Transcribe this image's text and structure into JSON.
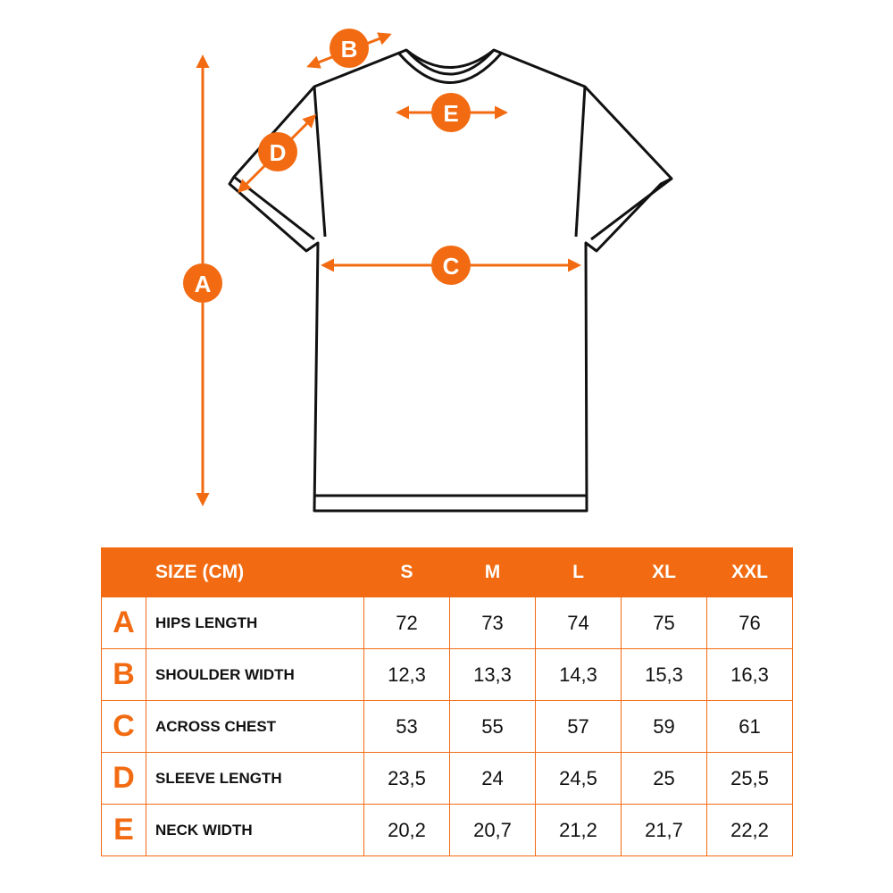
{
  "diagram": {
    "markers": [
      "A",
      "B",
      "C",
      "D",
      "E"
    ]
  },
  "table": {
    "header": [
      "SIZE (CM)",
      "S",
      "M",
      "L",
      "XL",
      "XXL"
    ],
    "rows": [
      {
        "letter": "A",
        "name": "HIPS LENGTH",
        "values": [
          "72",
          "73",
          "74",
          "75",
          "76"
        ]
      },
      {
        "letter": "B",
        "name": "SHOULDER WIDTH",
        "values": [
          "12,3",
          "13,3",
          "14,3",
          "15,3",
          "16,3"
        ]
      },
      {
        "letter": "C",
        "name": "ACROSS CHEST",
        "values": [
          "53",
          "55",
          "57",
          "59",
          "61"
        ]
      },
      {
        "letter": "D",
        "name": "SLEEVE LENGTH",
        "values": [
          "23,5",
          "24",
          "24,5",
          "25",
          "25,5"
        ]
      },
      {
        "letter": "E",
        "name": "NECK WIDTH",
        "values": [
          "20,2",
          "20,7",
          "21,2",
          "21,7",
          "22,2"
        ]
      }
    ]
  }
}
